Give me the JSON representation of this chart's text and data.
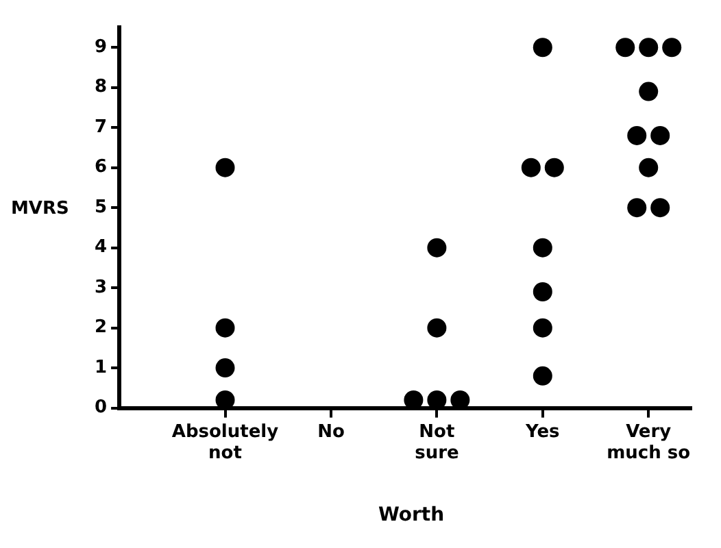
{
  "chart_data": {
    "type": "scatter",
    "xlabel": "Worth",
    "ylabel": "MVRS",
    "categories": [
      "Absolutely not",
      "No",
      "Not sure",
      "Yes",
      "Very much so"
    ],
    "series": [
      {
        "color": "#000000",
        "x": [
          "Absolutely not",
          "Absolutely not",
          "Absolutely not",
          "Absolutely not",
          "Not sure",
          "Not sure",
          "Not sure",
          "Not sure",
          "Not sure",
          "Yes",
          "Yes",
          "Yes",
          "Yes",
          "Yes",
          "Yes",
          "Yes",
          "Very much so",
          "Very much so",
          "Very much so",
          "Very much so",
          "Very much so",
          "Very much so",
          "Very much so",
          "Very much so",
          "Very much so"
        ],
        "values": [
          6,
          2,
          1,
          0.2,
          4,
          2,
          0.2,
          0.2,
          0.2,
          9,
          6,
          6,
          4,
          2.9,
          2,
          0.8,
          9,
          9,
          9,
          7.9,
          6.8,
          6.8,
          6,
          5,
          5
        ]
      }
    ],
    "ylim": [
      0,
      9.5
    ],
    "yticks": [
      0,
      1,
      2,
      3,
      4,
      5,
      6,
      7,
      8,
      9
    ],
    "grid": false,
    "legend": false,
    "marker": "circle"
  }
}
